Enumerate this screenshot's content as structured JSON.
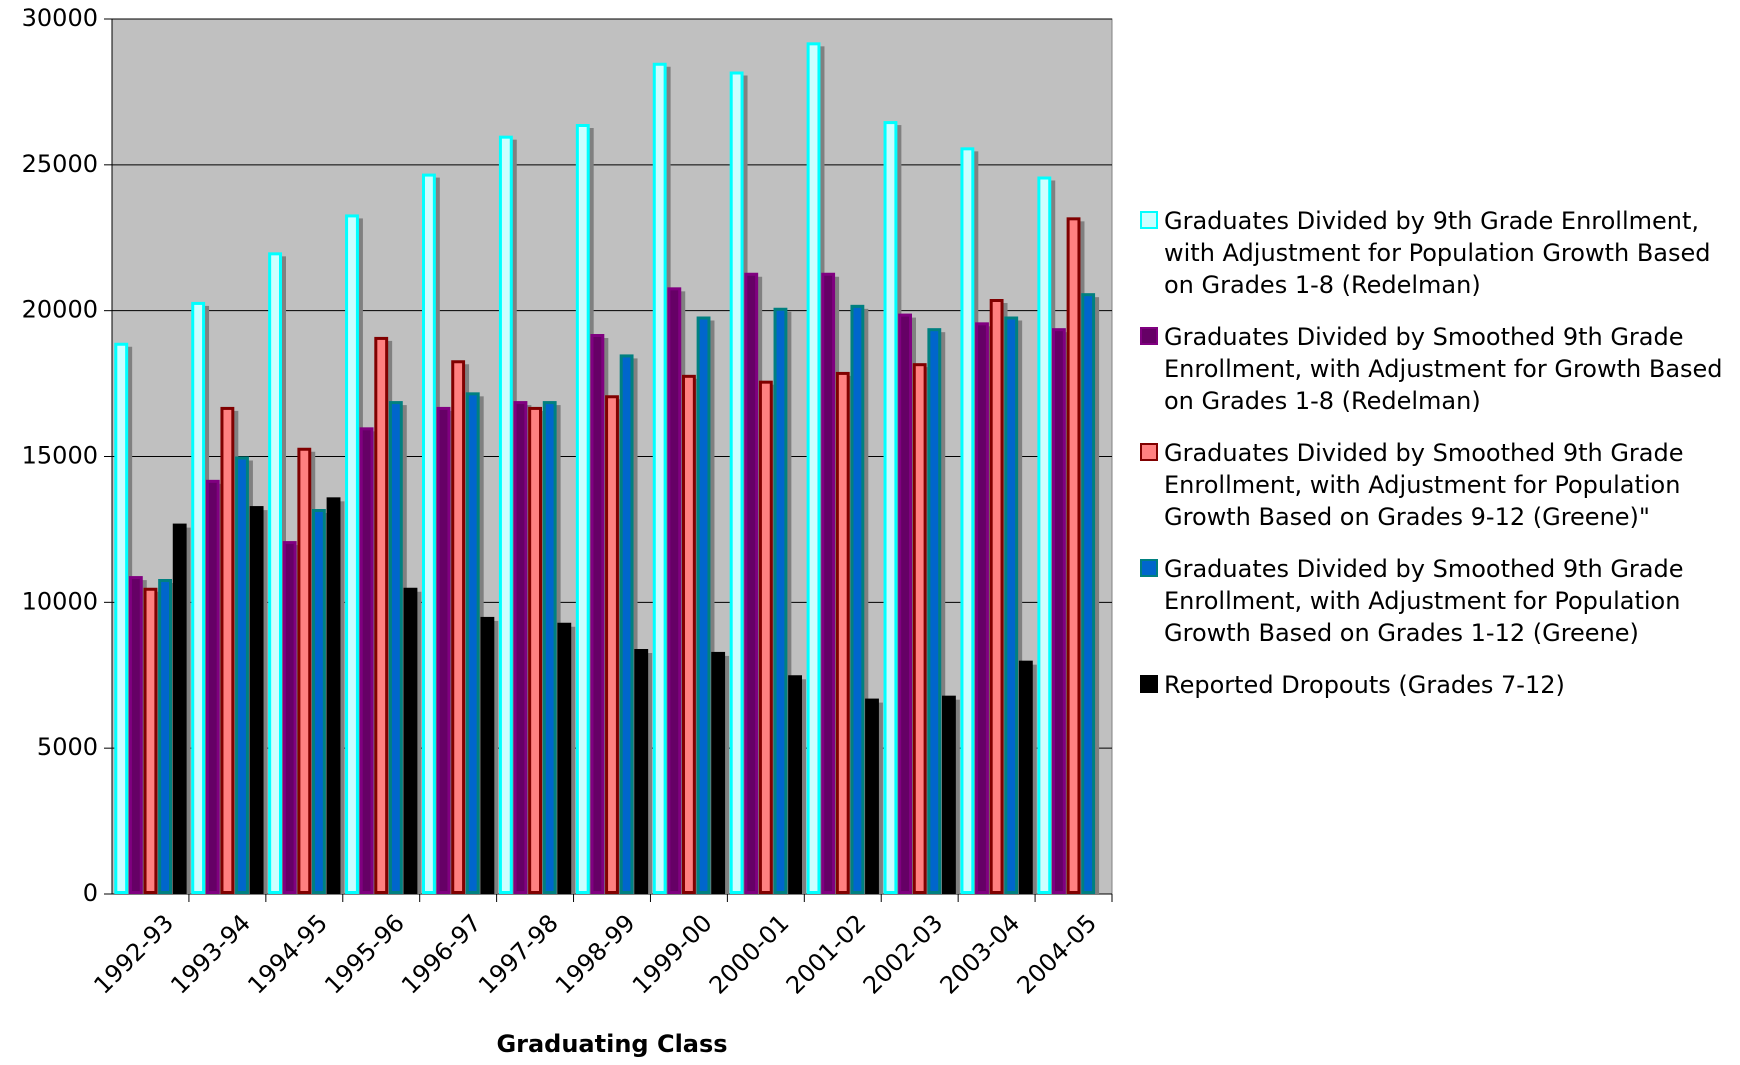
{
  "chart_data": {
    "type": "bar",
    "x_label": "Graduating Class",
    "categories": [
      "1992-93",
      "1993-94",
      "1994-95",
      "1995-96",
      "1996-97",
      "1997-98",
      "1998-99",
      "1999-00",
      "2000-01",
      "2001-02",
      "2002-03",
      "2003-04",
      "2004-05"
    ],
    "series": [
      {
        "name": "Graduates Divided by 9th Grade Enrollment, with Adjustment for Population Growth Based on Grades 1-8 (Redelman)",
        "color": "#ccffff",
        "border": "#00ffff",
        "values": [
          18900,
          20300,
          22000,
          23300,
          24700,
          26000,
          26400,
          28500,
          28200,
          29200,
          26500,
          25600,
          24600
        ]
      },
      {
        "name": "Graduates Divided by Smoothed 9th Grade Enrollment, with Adjustment for Growth Based on Grades 1-8 (Redelman)",
        "color": "#660066",
        "border": "#800080",
        "values": [
          10900,
          14200,
          12100,
          16000,
          16700,
          16900,
          19200,
          20800,
          21300,
          21300,
          19900,
          19600,
          19400
        ]
      },
      {
        "name": "Graduates Divided by Smoothed 9th Grade Enrollment, with Adjustment for Population Growth Based on Grades 9-12 (Greene)\"",
        "color": "#ff8080",
        "border": "#800000",
        "values": [
          10500,
          16700,
          15300,
          19100,
          18300,
          16700,
          17100,
          17800,
          17600,
          17900,
          18200,
          20400,
          23200
        ]
      },
      {
        "name": "Graduates Divided by Smoothed 9th Grade Enrollment, with Adjustment for Population Growth Based on Grades 1-12 (Greene)",
        "color": "#0066cc",
        "border": "#008080",
        "values": [
          10800,
          15000,
          13200,
          16900,
          17200,
          16900,
          18500,
          19800,
          20100,
          20200,
          19400,
          19800,
          20600
        ]
      },
      {
        "name": "Reported Dropouts (Grades 7-12)",
        "color": "#000000",
        "border": "#000000",
        "values": [
          12700,
          13300,
          13600,
          10500,
          9500,
          9300,
          8400,
          8300,
          7500,
          6700,
          6800,
          8000,
          null
        ]
      }
    ],
    "ylim": [
      0,
      30000
    ],
    "yticks": [
      0,
      5000,
      10000,
      15000,
      20000,
      25000,
      30000
    ],
    "grid": true
  }
}
